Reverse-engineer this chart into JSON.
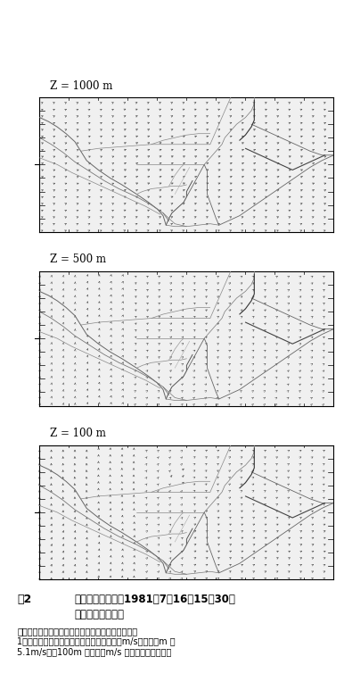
{
  "title_1000": "Z = 1000 m",
  "title_500": "Z = 500 m",
  "title_100": "Z = 100 m",
  "fig_label": "図2",
  "caption_line1": "関東地域における1981年7月16旤15時30分",
  "caption_line2": "の風系の高さ分布",
  "caption_body": "図中の矢印は風向，長さは風速を示す。東西方向の\n1つのメッシュ幅が高さ１０００づで３．９m/s，５００m で\n5.1m/s，　100m で６．８m/s の風速に相当する。",
  "bg_color": "#ffffff",
  "arrow_color": "#444444",
  "map_color": "#777777",
  "coast_color": "#333333",
  "nx": 26,
  "ny": 21,
  "figsize": [
    3.86,
    7.73
  ],
  "dpi": 100
}
